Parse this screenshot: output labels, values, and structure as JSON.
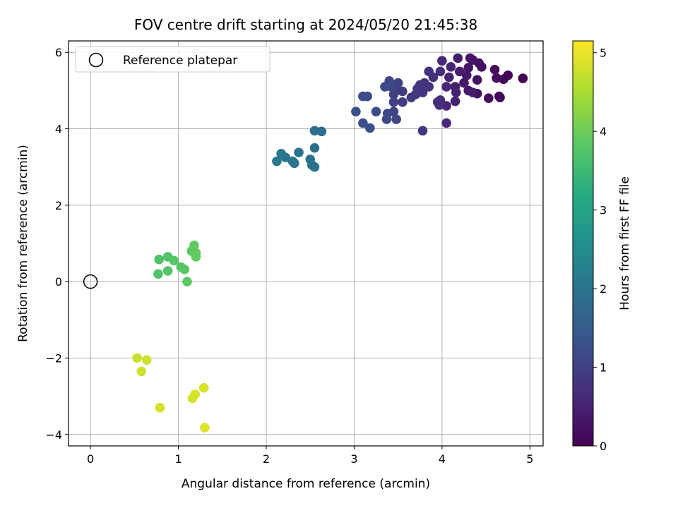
{
  "chart_data": {
    "type": "scatter",
    "title": "FOV centre drift starting at 2024/05/20 21:45:38",
    "xlabel": "Angular distance from reference (arcmin)",
    "ylabel": "Rotation from reference (arcmin)",
    "xlim": [
      -0.25,
      5.15
    ],
    "ylim": [
      -4.3,
      6.3
    ],
    "xticks": [
      "0",
      "1",
      "2",
      "3",
      "4",
      "5"
    ],
    "yticks": [
      "−4",
      "−2",
      "0",
      "2",
      "4",
      "6"
    ],
    "grid": true,
    "legend": {
      "placement": "top-left",
      "entries": [
        "Reference platepar"
      ]
    },
    "reference": {
      "x": 0,
      "y": 0
    },
    "colorbar": {
      "label": "Hours from first FF file",
      "range": [
        0,
        5.15
      ],
      "ticks": [
        "0",
        "1",
        "2",
        "3",
        "4",
        "5"
      ],
      "colormap": "viridis"
    },
    "points": [
      {
        "x": 4.92,
        "y": 5.32,
        "c": 0.02
      },
      {
        "x": 4.75,
        "y": 5.4,
        "c": 0.05
      },
      {
        "x": 4.7,
        "y": 5.3,
        "c": 0.07
      },
      {
        "x": 4.65,
        "y": 4.85,
        "c": 0.1
      },
      {
        "x": 4.66,
        "y": 4.82,
        "c": 0.12
      },
      {
        "x": 4.6,
        "y": 5.55,
        "c": 0.14
      },
      {
        "x": 4.62,
        "y": 5.33,
        "c": 0.16
      },
      {
        "x": 4.53,
        "y": 4.8,
        "c": 0.18
      },
      {
        "x": 4.45,
        "y": 5.62,
        "c": 0.2
      },
      {
        "x": 4.42,
        "y": 5.72,
        "c": 0.22
      },
      {
        "x": 4.4,
        "y": 5.28,
        "c": 0.24
      },
      {
        "x": 4.4,
        "y": 4.92,
        "c": 0.26
      },
      {
        "x": 4.35,
        "y": 5.8,
        "c": 0.28
      },
      {
        "x": 4.32,
        "y": 5.85,
        "c": 0.3
      },
      {
        "x": 4.3,
        "y": 5.6,
        "c": 0.32
      },
      {
        "x": 4.28,
        "y": 5.4,
        "c": 0.34
      },
      {
        "x": 4.25,
        "y": 5.2,
        "c": 0.36
      },
      {
        "x": 4.3,
        "y": 5.0,
        "c": 0.38
      },
      {
        "x": 4.35,
        "y": 4.95,
        "c": 0.4
      },
      {
        "x": 4.2,
        "y": 5.5,
        "c": 0.42
      },
      {
        "x": 4.18,
        "y": 5.85,
        "c": 0.44
      },
      {
        "x": 4.15,
        "y": 5.1,
        "c": 0.46
      },
      {
        "x": 4.16,
        "y": 4.95,
        "c": 0.48
      },
      {
        "x": 4.15,
        "y": 4.72,
        "c": 0.5
      },
      {
        "x": 4.1,
        "y": 5.62,
        "c": 0.52
      },
      {
        "x": 4.08,
        "y": 5.35,
        "c": 0.54
      },
      {
        "x": 4.05,
        "y": 5.1,
        "c": 0.56
      },
      {
        "x": 4.05,
        "y": 4.6,
        "c": 0.58
      },
      {
        "x": 4.05,
        "y": 4.15,
        "c": 0.6
      },
      {
        "x": 4.0,
        "y": 5.78,
        "c": 0.62
      },
      {
        "x": 3.98,
        "y": 5.5,
        "c": 0.64
      },
      {
        "x": 3.98,
        "y": 4.75,
        "c": 0.66
      },
      {
        "x": 3.97,
        "y": 4.62,
        "c": 0.68
      },
      {
        "x": 3.95,
        "y": 4.7,
        "c": 0.7
      },
      {
        "x": 3.9,
        "y": 5.35,
        "c": 0.72
      },
      {
        "x": 3.85,
        "y": 5.5,
        "c": 0.74
      },
      {
        "x": 3.85,
        "y": 5.1,
        "c": 0.76
      },
      {
        "x": 3.8,
        "y": 5.2,
        "c": 0.78
      },
      {
        "x": 3.78,
        "y": 4.95,
        "c": 0.8
      },
      {
        "x": 3.78,
        "y": 3.95,
        "c": 0.82
      },
      {
        "x": 3.75,
        "y": 5.15,
        "c": 0.84
      },
      {
        "x": 3.72,
        "y": 5.05,
        "c": 0.86
      },
      {
        "x": 3.7,
        "y": 4.9,
        "c": 0.88
      },
      {
        "x": 3.65,
        "y": 4.82,
        "c": 0.9
      },
      {
        "x": 3.55,
        "y": 4.98,
        "c": 0.92
      },
      {
        "x": 3.55,
        "y": 4.7,
        "c": 0.94
      },
      {
        "x": 3.5,
        "y": 5.2,
        "c": 0.96
      },
      {
        "x": 3.48,
        "y": 5.0,
        "c": 0.98
      },
      {
        "x": 3.45,
        "y": 4.9,
        "c": 1.0
      },
      {
        "x": 3.45,
        "y": 4.7,
        "c": 1.02
      },
      {
        "x": 3.45,
        "y": 4.45,
        "c": 1.04
      },
      {
        "x": 3.48,
        "y": 4.25,
        "c": 1.06
      },
      {
        "x": 3.42,
        "y": 5.1,
        "c": 1.08
      },
      {
        "x": 3.4,
        "y": 5.25,
        "c": 1.1
      },
      {
        "x": 3.38,
        "y": 4.4,
        "c": 1.12
      },
      {
        "x": 3.37,
        "y": 4.25,
        "c": 1.14
      },
      {
        "x": 3.35,
        "y": 5.1,
        "c": 1.16
      },
      {
        "x": 3.25,
        "y": 4.45,
        "c": 1.18
      },
      {
        "x": 3.15,
        "y": 4.85,
        "c": 1.2
      },
      {
        "x": 3.1,
        "y": 4.85,
        "c": 1.22
      },
      {
        "x": 3.1,
        "y": 4.15,
        "c": 1.24
      },
      {
        "x": 3.18,
        "y": 4.02,
        "c": 1.26
      },
      {
        "x": 3.02,
        "y": 4.45,
        "c": 1.28
      },
      {
        "x": 2.55,
        "y": 3.95,
        "c": 1.85
      },
      {
        "x": 2.63,
        "y": 3.93,
        "c": 1.87
      },
      {
        "x": 2.55,
        "y": 3.5,
        "c": 1.89
      },
      {
        "x": 2.5,
        "y": 3.2,
        "c": 1.91
      },
      {
        "x": 2.52,
        "y": 3.05,
        "c": 1.93
      },
      {
        "x": 2.55,
        "y": 3.0,
        "c": 1.95
      },
      {
        "x": 2.37,
        "y": 3.38,
        "c": 1.97
      },
      {
        "x": 2.32,
        "y": 3.1,
        "c": 1.99
      },
      {
        "x": 2.3,
        "y": 3.15,
        "c": 2.01
      },
      {
        "x": 2.22,
        "y": 3.25,
        "c": 2.03
      },
      {
        "x": 2.17,
        "y": 3.35,
        "c": 2.05
      },
      {
        "x": 2.12,
        "y": 3.15,
        "c": 2.07
      },
      {
        "x": 0.78,
        "y": 0.58,
        "c": 3.7
      },
      {
        "x": 0.77,
        "y": 0.2,
        "c": 3.72
      },
      {
        "x": 0.88,
        "y": 0.65,
        "c": 3.74
      },
      {
        "x": 0.88,
        "y": 0.28,
        "c": 3.76
      },
      {
        "x": 0.95,
        "y": 0.55,
        "c": 3.78
      },
      {
        "x": 1.03,
        "y": 0.38,
        "c": 3.8
      },
      {
        "x": 1.07,
        "y": 0.32,
        "c": 3.82
      },
      {
        "x": 1.1,
        "y": 0.0,
        "c": 3.84
      },
      {
        "x": 1.15,
        "y": 0.8,
        "c": 3.86
      },
      {
        "x": 1.18,
        "y": 0.95,
        "c": 3.88
      },
      {
        "x": 1.2,
        "y": 0.75,
        "c": 3.9
      },
      {
        "x": 1.2,
        "y": 0.65,
        "c": 3.92
      },
      {
        "x": 0.53,
        "y": -2.0,
        "c": 4.75
      },
      {
        "x": 0.64,
        "y": -2.05,
        "c": 4.77
      },
      {
        "x": 0.58,
        "y": -2.35,
        "c": 4.79
      },
      {
        "x": 0.79,
        "y": -3.3,
        "c": 4.81
      },
      {
        "x": 1.16,
        "y": -3.05,
        "c": 4.83
      },
      {
        "x": 1.19,
        "y": -2.95,
        "c": 4.85
      },
      {
        "x": 1.29,
        "y": -2.78,
        "c": 4.87
      },
      {
        "x": 1.3,
        "y": -3.82,
        "c": 4.89
      }
    ]
  }
}
